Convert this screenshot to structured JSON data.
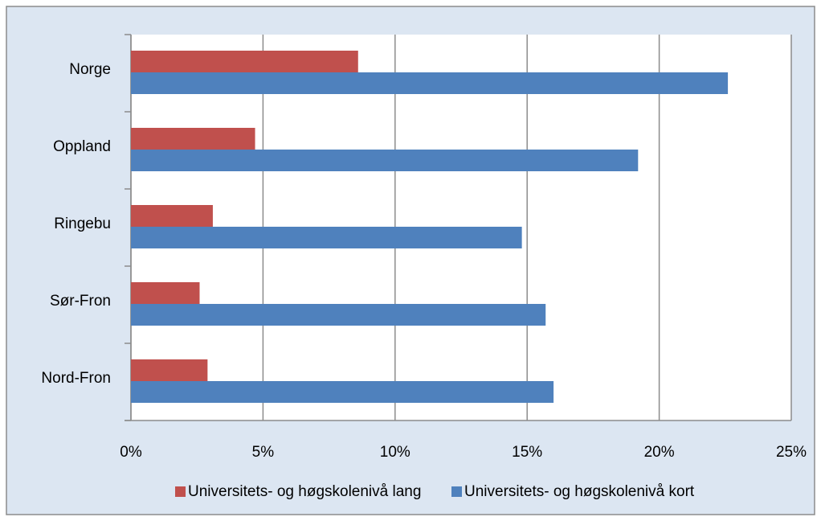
{
  "chart_data": {
    "type": "hbar",
    "categories": [
      "Norge",
      "Oppland",
      "Ringebu",
      "Sør-Fron",
      "Nord-Fron"
    ],
    "series": [
      {
        "name": "Universitets- og høgskolenivå lang",
        "color": "#c0504d",
        "values": [
          8.6,
          4.7,
          3.1,
          2.6,
          2.9
        ]
      },
      {
        "name": "Universitets- og høgskolenivå kort",
        "color": "#4f81bd",
        "values": [
          22.6,
          19.2,
          14.8,
          15.7,
          16.0
        ]
      }
    ],
    "xlim": [
      0,
      25
    ],
    "xticks": [
      {
        "value": 0,
        "label": "0%"
      },
      {
        "value": 5,
        "label": "5%"
      },
      {
        "value": 10,
        "label": "10%"
      },
      {
        "value": 15,
        "label": "15%"
      },
      {
        "value": 20,
        "label": "20%"
      },
      {
        "value": 25,
        "label": "25%"
      }
    ],
    "grid": true,
    "legend": "bottom"
  }
}
